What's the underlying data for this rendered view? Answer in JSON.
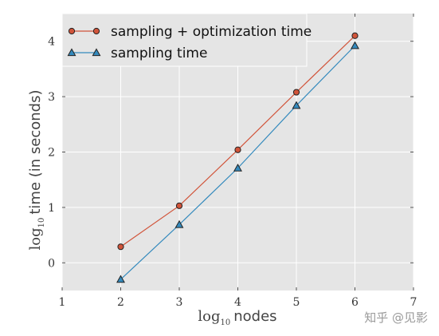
{
  "chart_data": {
    "type": "line",
    "x": [
      2,
      3,
      4,
      5,
      6
    ],
    "series": [
      {
        "name": "sampling + optimization time",
        "values": [
          0.29,
          1.03,
          2.04,
          3.08,
          4.1
        ],
        "color": "#d1543a",
        "marker": "circle"
      },
      {
        "name": "sampling time",
        "values": [
          -0.3,
          0.69,
          1.71,
          2.84,
          3.92
        ],
        "color": "#348abd",
        "marker": "triangle"
      }
    ],
    "xlim": [
      1,
      7
    ],
    "ylim": [
      -0.5,
      4.5
    ],
    "xticks": [
      1,
      2,
      3,
      4,
      5,
      6,
      7
    ],
    "yticks": [
      0,
      1,
      2,
      3,
      4
    ],
    "xlabel": {
      "log": "log",
      "sub": "10",
      "text": "nodes"
    },
    "ylabel": {
      "log": "log",
      "sub": "10",
      "text": "time (in seconds)"
    },
    "grid": true,
    "legend_position": "top-left",
    "background": "#e5e5e5",
    "grid_color": "#ffffff"
  },
  "watermark": "知乎 @见影"
}
